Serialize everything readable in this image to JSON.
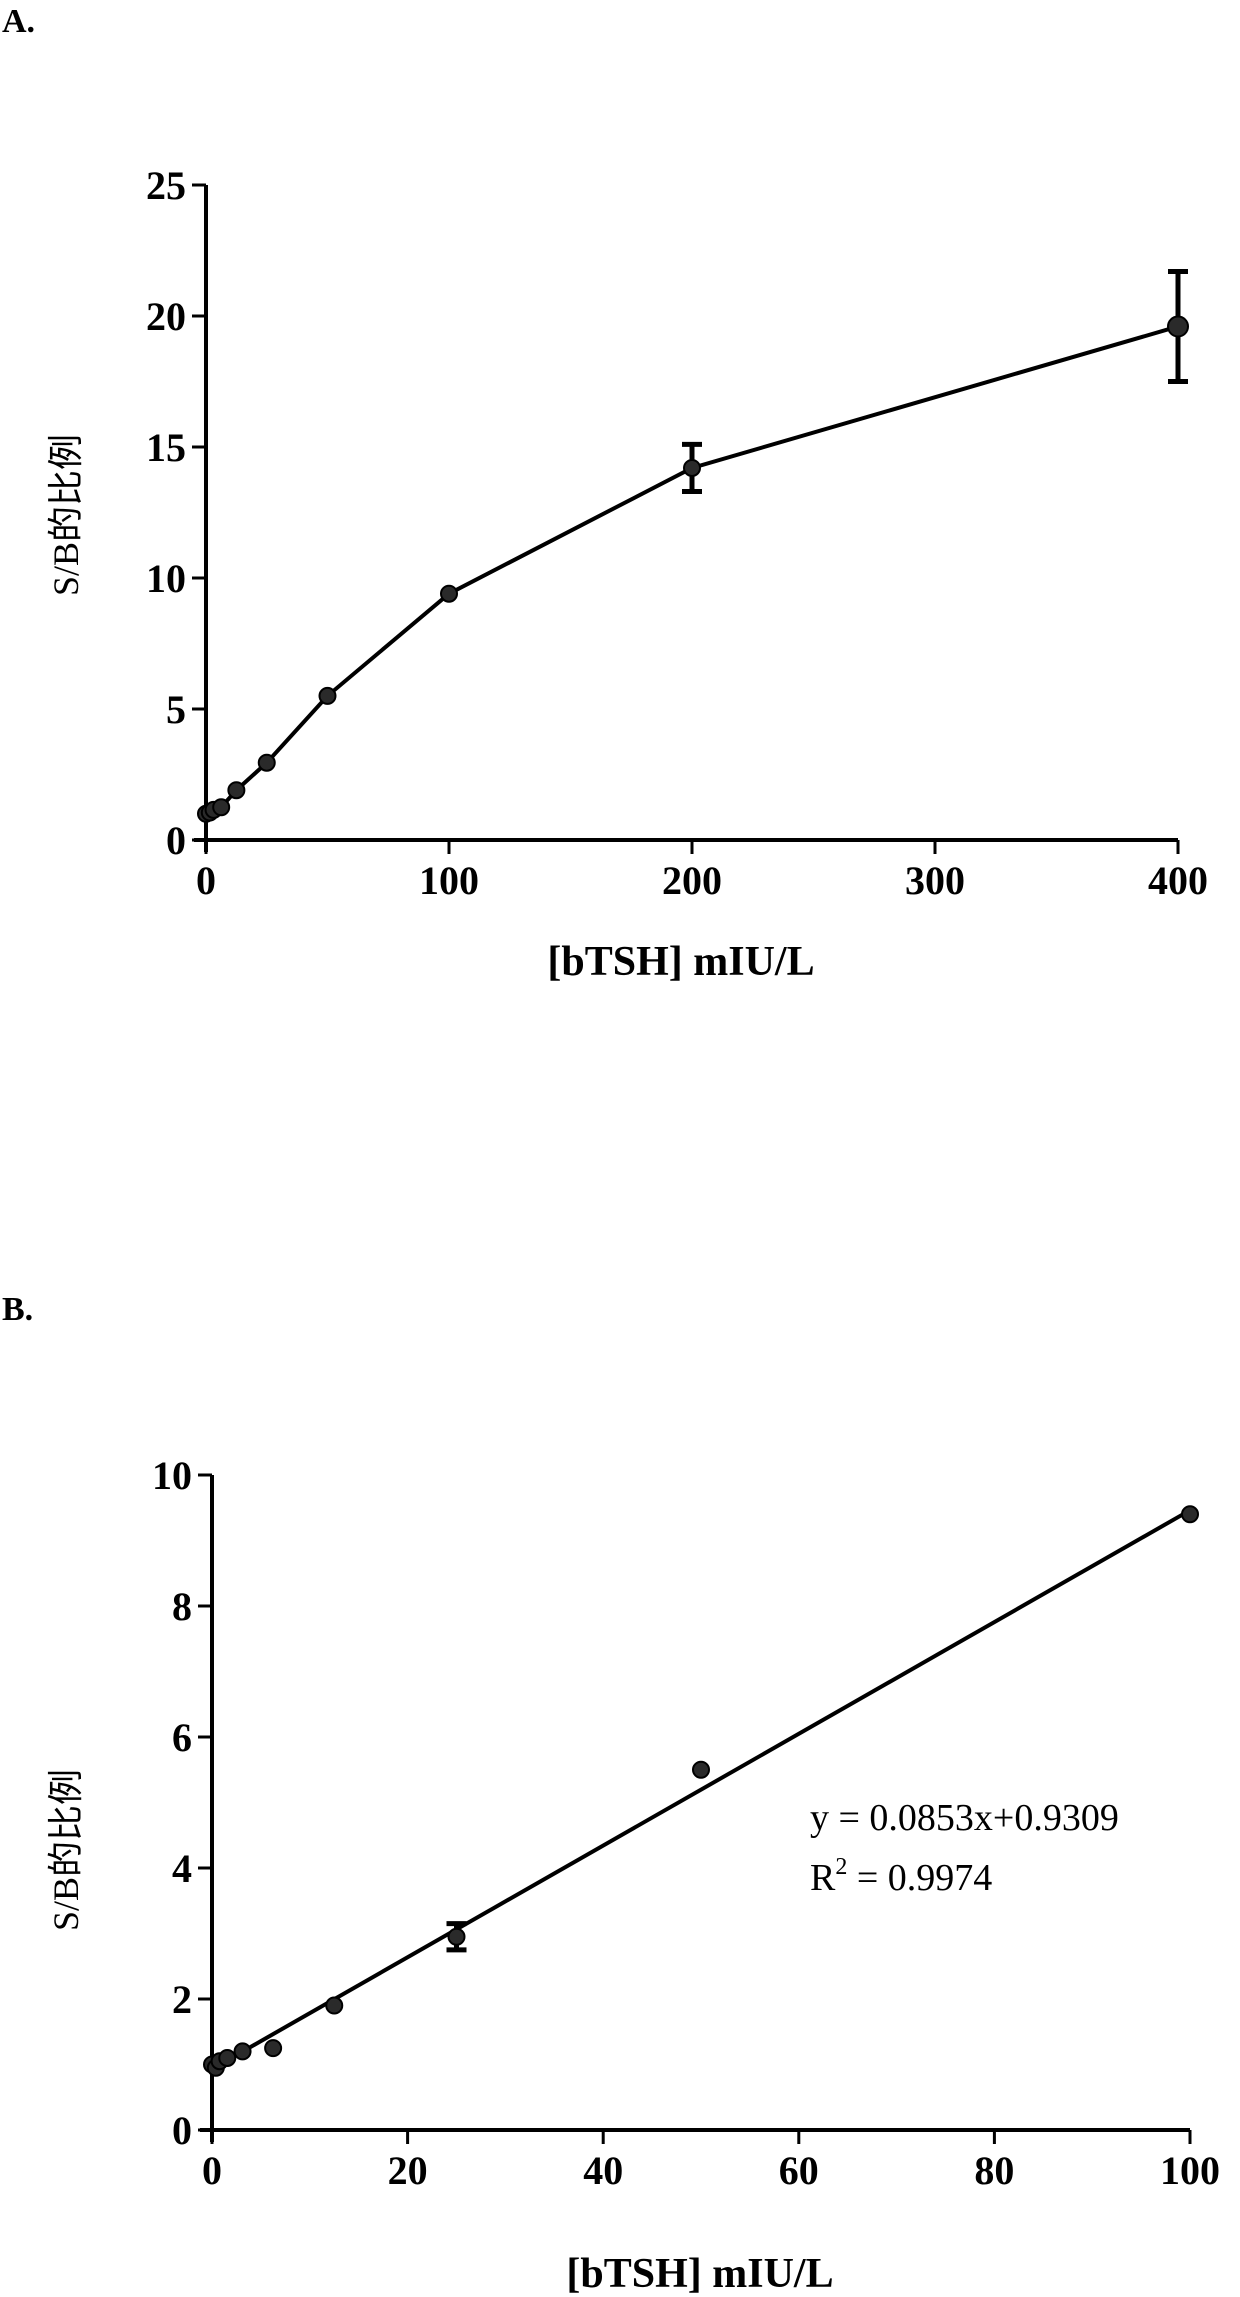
{
  "figure": {
    "panels": [
      {
        "label": "A."
      },
      {
        "label": "B."
      }
    ]
  },
  "chart_data": [
    {
      "type": "line",
      "panel": "A.",
      "xlabel": "[bTSH] mIU/L",
      "ylabel": "S/B的比例",
      "xlim": [
        0,
        400
      ],
      "ylim": [
        0,
        25
      ],
      "xticks": [
        0,
        100,
        200,
        300,
        400
      ],
      "yticks": [
        0,
        5,
        10,
        15,
        20,
        25
      ],
      "grid": false,
      "series": [
        {
          "x": [
            0,
            1.5625,
            3.125,
            6.25,
            12.5,
            25,
            50,
            100,
            200,
            400
          ],
          "y": [
            1.0,
            1.05,
            1.15,
            1.25,
            1.9,
            2.95,
            5.5,
            9.4,
            14.2,
            19.6
          ],
          "error": [
            0,
            0,
            0,
            0,
            0,
            0,
            0,
            0,
            0.9,
            2.1
          ]
        }
      ]
    },
    {
      "type": "scatter",
      "panel": "B.",
      "xlabel": "[bTSH] mIU/L",
      "ylabel": "S/B的比例",
      "xlim": [
        0,
        100
      ],
      "ylim": [
        0,
        10
      ],
      "xticks": [
        0,
        20,
        40,
        60,
        80,
        100
      ],
      "yticks": [
        0,
        2,
        4,
        6,
        8,
        10
      ],
      "grid": false,
      "series": [
        {
          "x": [
            0,
            0.390625,
            0.78125,
            1.5625,
            3.125,
            6.25,
            12.5,
            25,
            50,
            100
          ],
          "y": [
            1.0,
            0.95,
            1.05,
            1.1,
            1.2,
            1.25,
            1.9,
            2.95,
            5.5,
            9.4
          ],
          "error": [
            0,
            0,
            0,
            0,
            0,
            0,
            0,
            0.2,
            0,
            0
          ]
        }
      ],
      "fit": {
        "slope": 0.0853,
        "intercept": 0.9309,
        "equation": "y = 0.0853x+0.9309",
        "r2_prefix": "R",
        "r2_sup": "2",
        "r2_value": " = 0.9974"
      }
    }
  ]
}
